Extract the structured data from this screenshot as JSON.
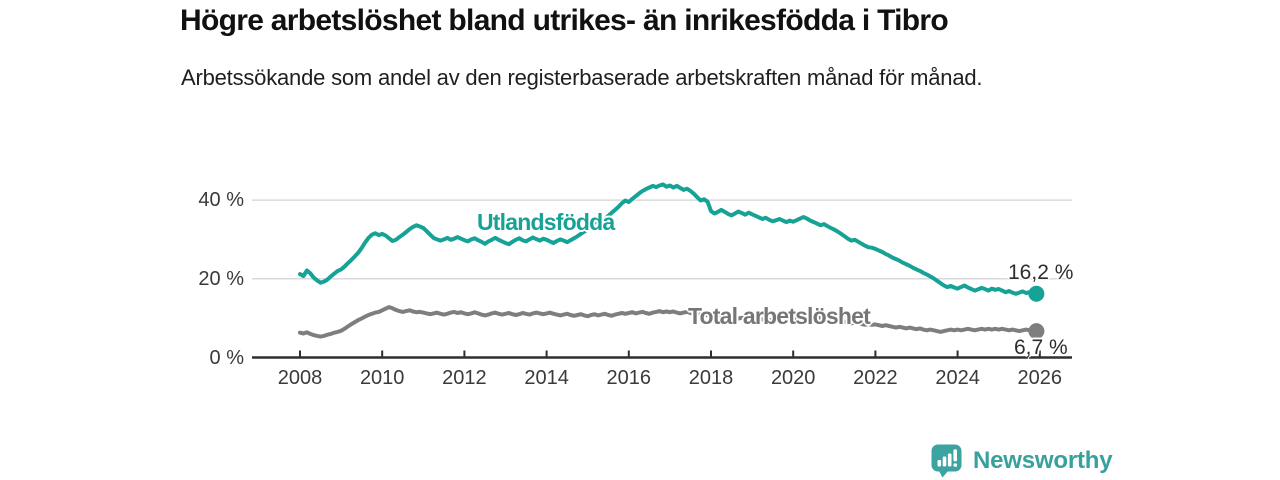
{
  "header": {
    "title": "Högre arbetslöshet bland utrikes- än inrikesfödda i Tibro",
    "subtitle": "Arbetssökande som andel av den registerbaserade arbetskraften månad för månad."
  },
  "chart_data": {
    "type": "line",
    "x_start_year": 2008,
    "x_step_months": 1,
    "x_ticks": [
      2008,
      2010,
      2012,
      2014,
      2016,
      2018,
      2020,
      2022,
      2024,
      2026
    ],
    "y_ticks": [
      {
        "value": 0,
        "label": "0 %"
      },
      {
        "value": 20,
        "label": "20 %"
      },
      {
        "value": 40,
        "label": "40 %"
      }
    ],
    "ylim": [
      0,
      46
    ],
    "grid": "horizontal",
    "legend": "inline-labels",
    "colors": {
      "grid": "#d9d9d9",
      "axis": "#2f2f2f",
      "tick_text": "#3a3a3a"
    },
    "series": [
      {
        "name": "Utlandsfödda",
        "color": "#17a296",
        "end_label": "16,2 %",
        "end_value": 16.2,
        "values": [
          21.2,
          20.7,
          22.1,
          21.4,
          20.3,
          19.6,
          19.0,
          19.3,
          19.8,
          20.6,
          21.3,
          22.0,
          22.4,
          23.1,
          24.0,
          24.8,
          25.7,
          26.6,
          27.8,
          29.2,
          30.4,
          31.2,
          31.6,
          31.1,
          31.4,
          31.0,
          30.3,
          29.6,
          29.9,
          30.6,
          31.2,
          31.9,
          32.6,
          33.2,
          33.6,
          33.3,
          32.9,
          32.1,
          31.2,
          30.4,
          30.0,
          29.7,
          30.0,
          30.4,
          29.9,
          30.2,
          30.6,
          30.2,
          29.8,
          29.5,
          30.0,
          30.3,
          29.8,
          29.4,
          28.9,
          29.5,
          29.9,
          30.4,
          29.9,
          29.5,
          29.1,
          28.8,
          29.4,
          29.9,
          30.3,
          29.8,
          29.5,
          30.0,
          30.5,
          30.1,
          29.7,
          30.2,
          29.9,
          29.5,
          29.1,
          29.6,
          30.0,
          29.7,
          29.3,
          29.8,
          30.3,
          30.8,
          31.4,
          32.0,
          32.6,
          33.3,
          34.2,
          34.9,
          34.3,
          35.1,
          36.0,
          36.8,
          37.5,
          38.3,
          39.2,
          39.9,
          39.5,
          40.3,
          41.0,
          41.7,
          42.3,
          42.8,
          43.2,
          43.6,
          43.3,
          43.7,
          44.0,
          43.4,
          43.7,
          43.2,
          43.6,
          43.1,
          42.6,
          42.9,
          42.3,
          41.6,
          40.7,
          39.9,
          40.2,
          39.6,
          37.2,
          36.6,
          37.0,
          37.5,
          37.0,
          36.5,
          36.1,
          36.6,
          37.1,
          36.7,
          36.3,
          36.8,
          36.4,
          36.0,
          35.6,
          35.2,
          35.5,
          35.0,
          34.6,
          34.9,
          35.2,
          34.8,
          34.4,
          34.8,
          34.5,
          34.9,
          35.3,
          35.7,
          35.3,
          34.8,
          34.4,
          34.0,
          33.6,
          33.9,
          33.4,
          32.9,
          32.5,
          32.0,
          31.4,
          30.8,
          30.2,
          29.7,
          29.9,
          29.4,
          28.9,
          28.4,
          28.0,
          27.9,
          27.6,
          27.2,
          26.8,
          26.3,
          25.9,
          25.4,
          25.0,
          24.6,
          24.1,
          23.7,
          23.3,
          22.8,
          22.4,
          22.0,
          21.5,
          21.1,
          20.6,
          20.1,
          19.5,
          18.9,
          18.3,
          17.9,
          18.2,
          17.8,
          17.5,
          17.9,
          18.3,
          17.8,
          17.4,
          17.0,
          17.3,
          17.7,
          17.4,
          17.0,
          17.5,
          17.2,
          17.4,
          17.0,
          16.6,
          16.9,
          16.5,
          16.2,
          16.5,
          16.8,
          16.4,
          16.6,
          16.3,
          16.2
        ]
      },
      {
        "name": "Total arbetslöshet",
        "color": "#7e7e7e",
        "end_label": "6,7 %",
        "end_value": 6.7,
        "values": [
          6.3,
          6.1,
          6.4,
          6.0,
          5.7,
          5.5,
          5.3,
          5.5,
          5.8,
          6.0,
          6.3,
          6.5,
          6.8,
          7.3,
          7.9,
          8.5,
          9.0,
          9.5,
          9.9,
          10.4,
          10.8,
          11.1,
          11.4,
          11.6,
          12.0,
          12.4,
          12.8,
          12.5,
          12.1,
          11.8,
          11.6,
          11.8,
          12.0,
          11.7,
          11.5,
          11.6,
          11.4,
          11.2,
          11.0,
          11.2,
          11.4,
          11.1,
          10.9,
          11.1,
          11.4,
          11.6,
          11.3,
          11.5,
          11.2,
          11.0,
          11.2,
          11.5,
          11.2,
          10.9,
          10.7,
          10.9,
          11.2,
          11.4,
          11.1,
          10.9,
          11.1,
          11.3,
          11.0,
          10.8,
          11.0,
          11.3,
          11.1,
          10.9,
          11.2,
          11.4,
          11.2,
          11.0,
          11.2,
          11.4,
          11.1,
          10.9,
          10.7,
          10.9,
          11.1,
          10.8,
          10.6,
          10.8,
          11.0,
          10.7,
          10.5,
          10.8,
          11.0,
          10.7,
          10.9,
          11.1,
          10.8,
          10.6,
          10.9,
          11.1,
          11.3,
          11.1,
          11.3,
          11.5,
          11.2,
          11.4,
          11.6,
          11.3,
          11.1,
          11.4,
          11.6,
          11.8,
          11.5,
          11.7,
          11.5,
          11.7,
          11.4,
          11.2,
          11.4,
          11.6,
          11.3,
          11.1,
          10.9,
          11.1,
          10.9,
          10.7,
          10.5,
          10.3,
          10.5,
          10.2,
          10.0,
          10.2,
          10.4,
          10.1,
          9.9,
          10.1,
          9.9,
          9.7,
          9.9,
          9.7,
          9.5,
          9.7,
          9.9,
          9.6,
          9.4,
          9.6,
          9.8,
          9.6,
          9.4,
          9.6,
          9.8,
          10.0,
          10.4,
          10.8,
          11.0,
          10.7,
          10.5,
          10.3,
          10.1,
          9.9,
          9.7,
          9.5,
          9.7,
          9.5,
          9.3,
          9.1,
          8.9,
          8.7,
          8.9,
          8.7,
          8.5,
          8.3,
          8.5,
          8.3,
          8.4,
          8.2,
          8.0,
          8.2,
          8.0,
          7.8,
          7.6,
          7.8,
          7.6,
          7.4,
          7.6,
          7.4,
          7.2,
          7.4,
          7.1,
          6.9,
          7.1,
          6.9,
          6.7,
          6.5,
          6.7,
          6.9,
          7.1,
          6.9,
          7.1,
          6.9,
          7.1,
          7.3,
          7.1,
          6.9,
          7.1,
          7.3,
          7.1,
          7.3,
          7.1,
          7.3,
          7.1,
          7.3,
          7.1,
          6.9,
          7.1,
          6.9,
          6.7,
          6.9,
          7.1,
          6.9,
          6.8,
          6.7
        ]
      }
    ]
  },
  "footer": {
    "brand": "Newsworthy",
    "logo_icon": "bar-chart-speech-bubble-icon",
    "logo_color": "#3ba3a0"
  }
}
